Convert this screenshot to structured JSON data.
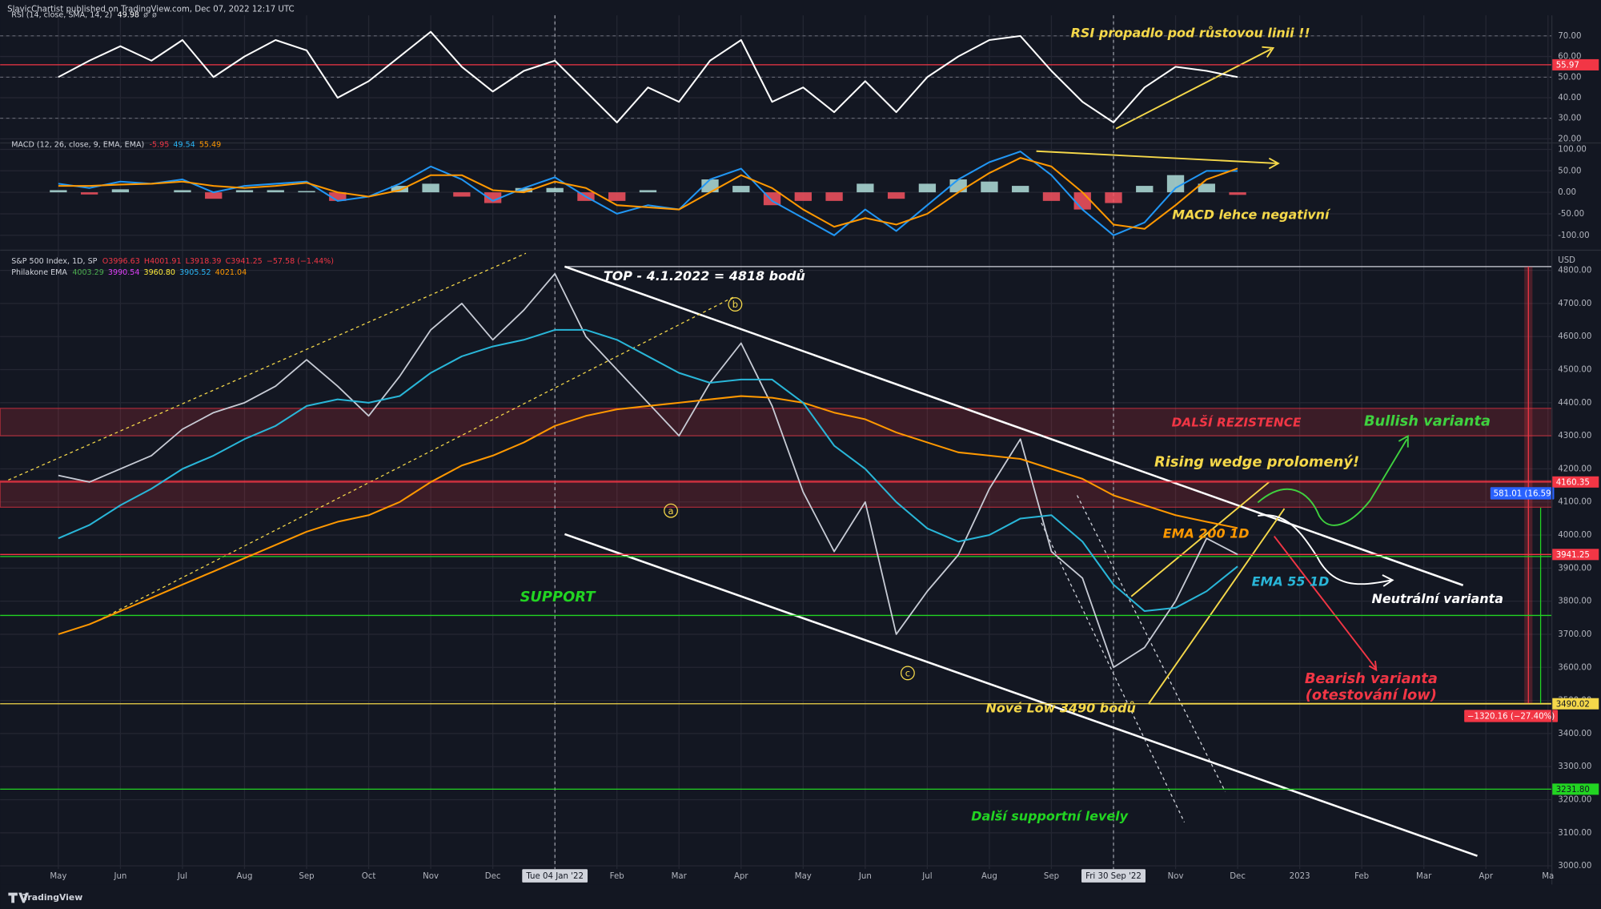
{
  "header": "SlavicChartist published on TradingView.com, Dec 07, 2022 12:17 UTC",
  "footer": "TradingView",
  "chart_data": {
    "type": "line",
    "categories": [
      "May",
      null,
      "Jun",
      null,
      "Jul",
      null,
      "Aug",
      null,
      "Sep",
      null,
      "Oct",
      null,
      "Nov",
      null,
      "Dec",
      null,
      "Tue 04 Jan '22",
      null,
      "Feb",
      null,
      "Mar",
      null,
      "Apr",
      null,
      "May",
      null,
      "Jun",
      null,
      "Jul",
      null,
      "Aug",
      null,
      "Sep",
      null,
      "Fri 30 Sep '22",
      null,
      "Nov",
      null,
      "Dec",
      null,
      "2023",
      null,
      "Feb",
      null,
      "Mar",
      null,
      "Apr",
      null,
      "Ma"
    ],
    "panes": [
      {
        "title": "RSI (14, close, SMA, 14, 2)",
        "readouts": [
          {
            "text": "49.98",
            "color": "#ffffff"
          },
          {
            "text": "ø",
            "color": "#b2b5be"
          },
          {
            "text": "ø",
            "color": "#b2b5be"
          }
        ],
        "ylim": [
          19,
          80
        ],
        "yticks": [
          {
            "value": 20,
            "label": "20.00"
          },
          {
            "value": 30,
            "label": "30.00"
          },
          {
            "value": 40,
            "label": "40.00"
          },
          {
            "value": 50,
            "label": "50.00"
          },
          {
            "value": 60,
            "label": "60.00"
          },
          {
            "value": 70,
            "label": "70.00"
          }
        ],
        "levels": [
          {
            "value": 70,
            "color": "#787b86",
            "dashed": true
          },
          {
            "value": 50,
            "color": "#787b86",
            "dashed": true
          },
          {
            "value": 30,
            "color": "#787b86",
            "dashed": true
          },
          {
            "value": 55.97,
            "color": "#f23645",
            "badge": true,
            "text_color": "#ffffff"
          }
        ],
        "series": [
          {
            "type": "line",
            "color": "#ffffff",
            "values": [
              50,
              58,
              65,
              58,
              68,
              50,
              60,
              68,
              63,
              40,
              48,
              60,
              72,
              55,
              43,
              53,
              58,
              43,
              28,
              45,
              38,
              58,
              68,
              38,
              45,
              33,
              48,
              33,
              50,
              60,
              68,
              70,
              53,
              38,
              28,
              45,
              55,
              53,
              49.98,
              null,
              null,
              null,
              null,
              null,
              null,
              null,
              null,
              null,
              null,
              null
            ]
          }
        ],
        "annotations": [
          {
            "text": "RSI propadlo pod růstovou linii !!",
            "color": "#f5d84a"
          }
        ]
      },
      {
        "title": "MACD (12, 26, close, 9, EMA, EMA)",
        "readouts": [
          {
            "text": "-5.95",
            "color": "#f23645"
          },
          {
            "text": "49.54",
            "color": "#29b6f6"
          },
          {
            "text": "55.49",
            "color": "#ff9800"
          }
        ],
        "ylim": [
          -130,
          110
        ],
        "yticks": [
          {
            "value": -100,
            "label": "-100.00"
          },
          {
            "value": -50,
            "label": "-50.00"
          },
          {
            "value": 0,
            "label": "0.00"
          },
          {
            "value": 50,
            "label": "50.00"
          },
          {
            "value": 100,
            "label": "100.00"
          }
        ],
        "levels": [],
        "series": [
          {
            "type": "bar",
            "color": "#b2dfdb",
            "negative_color": "#f7525f",
            "values": [
              5,
              -5,
              7,
              0,
              5,
              -15,
              5,
              5,
              3,
              -20,
              0,
              15,
              20,
              -10,
              -25,
              10,
              10,
              -20,
              -20,
              5,
              0,
              30,
              15,
              -30,
              -20,
              -20,
              20,
              -15,
              20,
              30,
              25,
              15,
              -20,
              -40,
              -25,
              15,
              40,
              20,
              -5.95,
              null,
              null,
              null,
              null,
              null,
              null,
              null,
              null,
              null,
              null,
              null
            ]
          },
          {
            "type": "line",
            "color": "#2196f3",
            "values": [
              20,
              10,
              25,
              20,
              30,
              0,
              15,
              20,
              25,
              -20,
              -10,
              20,
              60,
              30,
              -20,
              10,
              35,
              -10,
              -50,
              -30,
              -40,
              30,
              55,
              -20,
              -60,
              -100,
              -40,
              -90,
              -30,
              30,
              70,
              95,
              40,
              -40,
              -100,
              -70,
              10,
              50,
              49.54,
              null,
              null,
              null,
              null,
              null,
              null,
              null,
              null,
              null,
              null,
              null
            ]
          },
          {
            "type": "line",
            "color": "#ff9800",
            "values": [
              15,
              15,
              18,
              20,
              25,
              15,
              10,
              15,
              22,
              0,
              -10,
              5,
              40,
              40,
              5,
              0,
              25,
              10,
              -30,
              -35,
              -40,
              0,
              40,
              10,
              -40,
              -80,
              -60,
              -75,
              -50,
              0,
              45,
              80,
              60,
              0,
              -75,
              -85,
              -30,
              30,
              55.49,
              null,
              null,
              null,
              null,
              null,
              null,
              null,
              null,
              null,
              null,
              null
            ]
          }
        ],
        "annotations": [
          {
            "text": "MACD lehce negativní",
            "color": "#f5d84a"
          }
        ]
      },
      {
        "title": "S&P 500 Index, 1D, SP",
        "readouts": [
          {
            "text": "O3996.63",
            "color": "#f23645"
          },
          {
            "text": "H4001.91",
            "color": "#f23645"
          },
          {
            "text": "L3918.39",
            "color": "#f23645"
          },
          {
            "text": "C3941.25",
            "color": "#f23645"
          },
          {
            "text": "−57.58 (−1.44%)",
            "color": "#f23645"
          }
        ],
        "subtitle": "Philakone EMA",
        "subreadouts": [
          {
            "text": "4003.29",
            "color": "#4caf50"
          },
          {
            "text": "3990.54",
            "color": "#e040fb"
          },
          {
            "text": "3960.80",
            "color": "#ffeb3b"
          },
          {
            "text": "3905.52",
            "color": "#29b6f6"
          },
          {
            "text": "4021.04",
            "color": "#ff9800"
          }
        ],
        "unit": "USD",
        "ylim": [
          2990,
          4830
        ],
        "yticks": [
          {
            "value": 3000,
            "label": "3000.00"
          },
          {
            "value": 3100,
            "label": "3100.00"
          },
          {
            "value": 3200,
            "label": "3200.00"
          },
          {
            "value": 3300,
            "label": "3300.00"
          },
          {
            "value": 3400,
            "label": "3400.00"
          },
          {
            "value": 3500,
            "label": "3500.00"
          },
          {
            "value": 3600,
            "label": "3600.00"
          },
          {
            "value": 3700,
            "label": "3700.00"
          },
          {
            "value": 3800,
            "label": "3800.00"
          },
          {
            "value": 3900,
            "label": "3900.00"
          },
          {
            "value": 4000,
            "label": "4000.00"
          },
          {
            "value": 4100,
            "label": "4100.00"
          },
          {
            "value": 4200,
            "label": "4200.00"
          },
          {
            "value": 4300,
            "label": "4300.00"
          },
          {
            "value": 4400,
            "label": "4400.00"
          },
          {
            "value": 4500,
            "label": "4500.00"
          },
          {
            "value": 4600,
            "label": "4600.00"
          },
          {
            "value": 4700,
            "label": "4700.00"
          },
          {
            "value": 4800,
            "label": "4800.00"
          }
        ],
        "zones": [
          {
            "from": 4300,
            "to": 4383,
            "color": "#f23645"
          },
          {
            "from": 4084,
            "to": 4164,
            "color": "#f23645"
          }
        ],
        "levels": [
          {
            "value": 4160.35,
            "color": "#f23645",
            "badge": true,
            "text_color": "#ffffff"
          },
          {
            "value": 3941.25,
            "color": "#f23645",
            "badge": true,
            "text_color": "#ffffff"
          },
          {
            "value": 3935,
            "color": "#22d422"
          },
          {
            "value": 3757,
            "color": "#22d422"
          },
          {
            "value": 3490.02,
            "color": "#f5d84a",
            "badge": true,
            "text_color": "#131722"
          },
          {
            "value": 3231.8,
            "label": "3231.80",
            "color": "#22d422",
            "badge": true,
            "text_color": "#131722"
          }
        ],
        "series": [
          {
            "type": "line",
            "color": "#c8ccd6",
            "values": [
              4180,
              4160,
              4200,
              4240,
              4320,
              4370,
              4400,
              4450,
              4530,
              4450,
              4360,
              4480,
              4620,
              4700,
              4590,
              4680,
              4790,
              4600,
              4500,
              4400,
              4300,
              4460,
              4580,
              4390,
              4130,
              3950,
              4100,
              3700,
              3830,
              3940,
              4140,
              4290,
              3950,
              3870,
              3600,
              3660,
              3800,
              3990,
              3941.25,
              null,
              null,
              null,
              null,
              null,
              null,
              null,
              null,
              null,
              null,
              null
            ]
          },
          {
            "type": "line",
            "name": "EMA 200 1D",
            "color": "#ff9800",
            "values": [
              3700,
              3730,
              3770,
              3810,
              3850,
              3890,
              3930,
              3970,
              4010,
              4040,
              4060,
              4100,
              4160,
              4210,
              4240,
              4280,
              4330,
              4360,
              4380,
              4390,
              4400,
              4410,
              4420,
              4415,
              4400,
              4370,
              4350,
              4310,
              4280,
              4250,
              4240,
              4230,
              4200,
              4170,
              4120,
              4090,
              4060,
              4040,
              4021.04,
              null,
              null,
              null,
              null,
              null,
              null,
              null,
              null,
              null,
              null,
              null
            ]
          },
          {
            "type": "line",
            "name": "EMA 55 1D",
            "color": "#29b6d8",
            "values": [
              3990,
              4030,
              4090,
              4140,
              4200,
              4240,
              4290,
              4330,
              4390,
              4410,
              4400,
              4420,
              4490,
              4540,
              4570,
              4590,
              4620,
              4620,
              4590,
              4540,
              4490,
              4460,
              4470,
              4470,
              4400,
              4270,
              4200,
              4100,
              4020,
              3980,
              4000,
              4050,
              4060,
              3980,
              3850,
              3770,
              3780,
              3830,
              3905.52,
              null,
              null,
              null,
              null,
              null,
              null,
              null,
              null,
              null,
              null,
              null
            ]
          }
        ],
        "annotations": [
          {
            "text": "TOP - 4.1.2022 = 4818 bodů",
            "color": "#ffffff"
          },
          {
            "text": "DALŠÍ REZISTENCE",
            "color": "#f23645"
          },
          {
            "text": "Bullish varianta",
            "color": "#3fd13f"
          },
          {
            "text": "Rising wedge prolomený!",
            "color": "#f5d84a"
          },
          {
            "text": "Neutrální varianta",
            "color": "#ffffff"
          },
          {
            "text": "SUPPORT",
            "color": "#22d422"
          },
          {
            "text": "Bearish varianta",
            "color": "#f23645"
          },
          {
            "text": "(otestování low)",
            "color": "#f23645"
          },
          {
            "text": "Nové Low 3490 bodů",
            "color": "#f5d84a"
          },
          {
            "text": "Další supportní levely",
            "color": "#22d422"
          },
          {
            "text": "a",
            "color": "#f5d84a"
          },
          {
            "text": "b",
            "color": "#f5d84a"
          },
          {
            "text": "c",
            "color": "#f5d84a"
          },
          {
            "text": "581.01 (16.59",
            "color": "#ffffff",
            "background": "#2962ff"
          },
          {
            "text": "−1320.16 (−27.40%)",
            "color": "#ffffff",
            "background": "#f23645"
          }
        ]
      }
    ]
  }
}
